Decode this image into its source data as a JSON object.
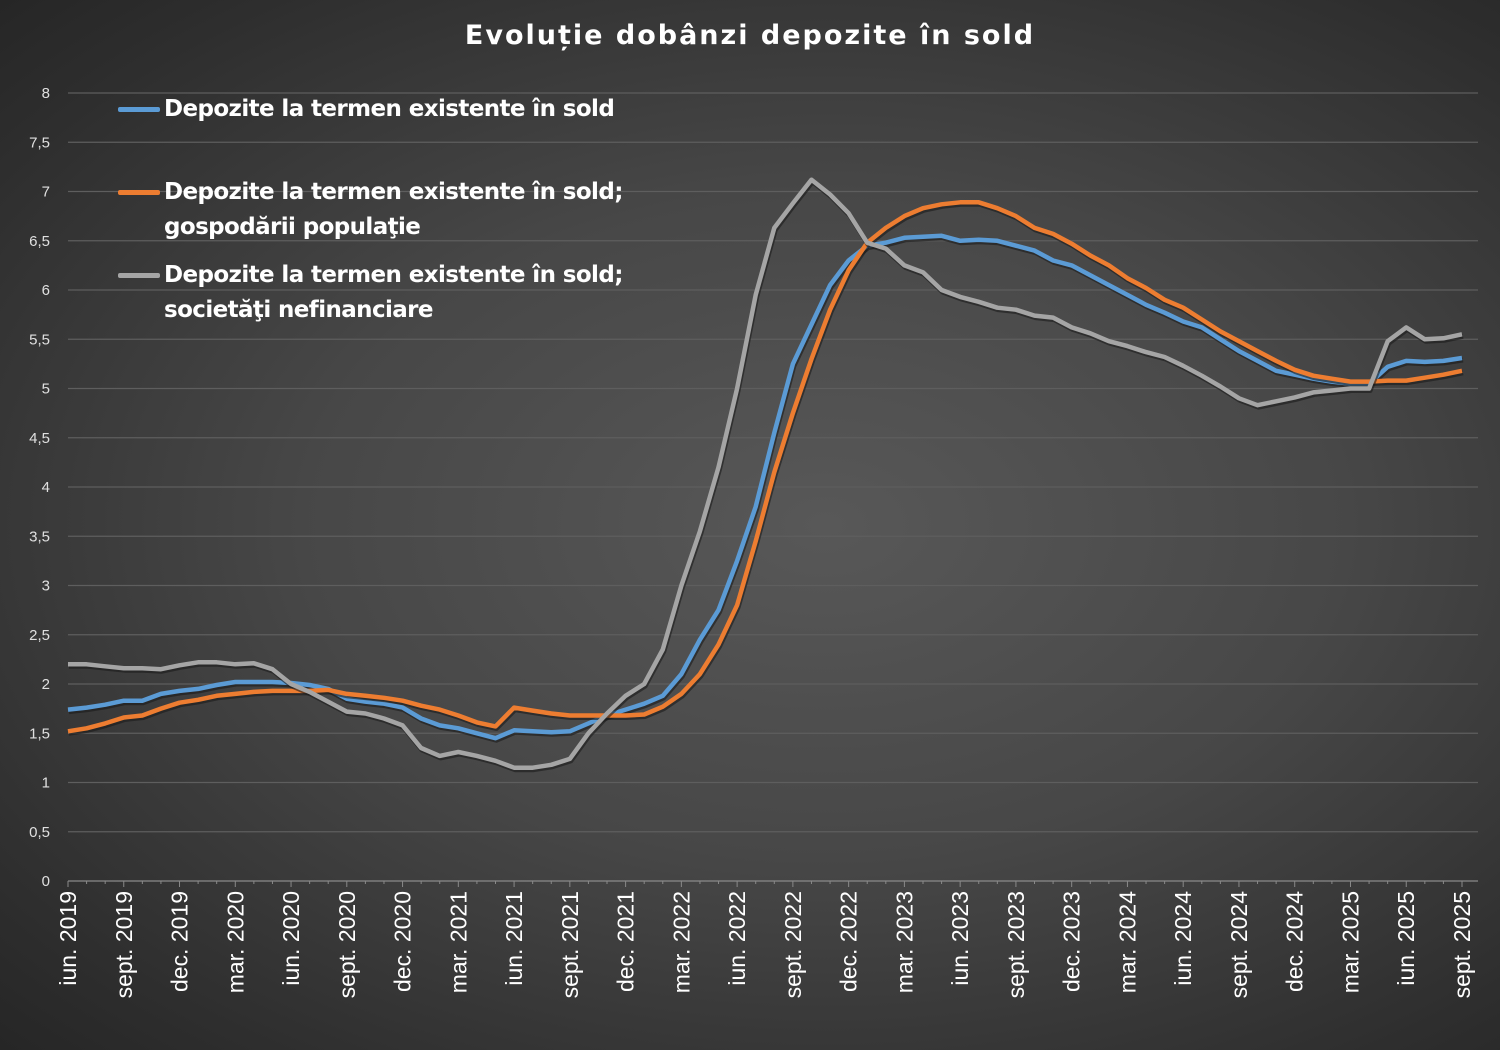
{
  "chart_data": {
    "type": "line",
    "title": "Evoluție dobânzi depozite în sold",
    "xlabel": "",
    "ylabel": "",
    "ylim": [
      0,
      8
    ],
    "yticks": [
      "0",
      "0,5",
      "1",
      "1,5",
      "2",
      "2,5",
      "3",
      "3,5",
      "4",
      "4,5",
      "5",
      "5,5",
      "6",
      "6,5",
      "7",
      "7,5",
      "8"
    ],
    "x_start": "iun. 2019",
    "x_end": "sept. 2025",
    "x_tick_labels": [
      "iun. 2019",
      "sept. 2019",
      "dec. 2019",
      "mar. 2020",
      "iun. 2020",
      "sept. 2020",
      "dec. 2020",
      "mar. 2021",
      "iun. 2021",
      "sept. 2021",
      "dec. 2021",
      "mar. 2022",
      "iun. 2022",
      "sept. 2022",
      "dec. 2022",
      "mar. 2023",
      "iun. 2023",
      "sept. 2023",
      "dec. 2023",
      "mar. 2024",
      "iun. 2024",
      "sept. 2024",
      "dec. 2024",
      "mar. 2025",
      "iun. 2025",
      "sept. 2025"
    ],
    "grid": true,
    "legend_position": "top-left",
    "series": [
      {
        "name": "Depozite la termen existente în sold",
        "name_line2": "",
        "color": "#5b9bd5",
        "values": [
          1.74,
          1.76,
          1.79,
          1.83,
          1.83,
          1.9,
          1.93,
          1.95,
          1.99,
          2.02,
          2.02,
          2.02,
          2.01,
          1.99,
          1.95,
          1.85,
          1.82,
          1.8,
          1.76,
          1.65,
          1.58,
          1.55,
          1.5,
          1.45,
          1.53,
          1.52,
          1.51,
          1.52,
          1.6,
          1.68,
          1.74,
          1.8,
          1.88,
          2.1,
          2.45,
          2.75,
          3.25,
          3.8,
          4.55,
          5.25,
          5.65,
          6.05,
          6.3,
          6.45,
          6.48,
          6.53,
          6.54,
          6.55,
          6.5,
          6.51,
          6.5,
          6.45,
          6.4,
          6.3,
          6.25,
          6.15,
          6.05,
          5.95,
          5.85,
          5.77,
          5.68,
          5.62,
          5.5,
          5.38,
          5.28,
          5.18,
          5.14,
          5.1,
          5.07,
          5.05,
          5.05,
          5.22,
          5.28,
          5.27,
          5.28,
          5.31
        ]
      },
      {
        "name": "Depozite la termen existente în sold;",
        "name_line2": "gospodării populaţie",
        "color": "#ed7d31",
        "values": [
          1.52,
          1.55,
          1.6,
          1.66,
          1.68,
          1.75,
          1.81,
          1.84,
          1.88,
          1.9,
          1.92,
          1.93,
          1.93,
          1.93,
          1.94,
          1.9,
          1.88,
          1.86,
          1.83,
          1.78,
          1.74,
          1.68,
          1.61,
          1.57,
          1.76,
          1.73,
          1.7,
          1.68,
          1.68,
          1.68,
          1.68,
          1.69,
          1.77,
          1.9,
          2.1,
          2.4,
          2.8,
          3.45,
          4.15,
          4.75,
          5.3,
          5.8,
          6.2,
          6.48,
          6.63,
          6.75,
          6.83,
          6.87,
          6.89,
          6.89,
          6.83,
          6.75,
          6.63,
          6.57,
          6.47,
          6.35,
          6.25,
          6.12,
          6.02,
          5.9,
          5.82,
          5.7,
          5.58,
          5.48,
          5.38,
          5.28,
          5.19,
          5.13,
          5.1,
          5.07,
          5.07,
          5.08,
          5.08,
          5.11,
          5.14,
          5.18
        ]
      },
      {
        "name": "Depozite la termen existente în sold;",
        "name_line2": "societăţi nefinanciare",
        "color": "#a5a5a5",
        "values": [
          2.2,
          2.2,
          2.18,
          2.16,
          2.16,
          2.15,
          2.19,
          2.22,
          2.22,
          2.2,
          2.21,
          2.15,
          2.0,
          1.92,
          1.82,
          1.72,
          1.7,
          1.65,
          1.58,
          1.35,
          1.27,
          1.31,
          1.27,
          1.22,
          1.15,
          1.15,
          1.18,
          1.24,
          1.5,
          1.7,
          1.88,
          2.0,
          2.35,
          3.0,
          3.55,
          4.2,
          5.0,
          5.95,
          6.63,
          6.88,
          7.12,
          6.97,
          6.78,
          6.48,
          6.42,
          6.25,
          6.18,
          6.0,
          5.93,
          5.88,
          5.82,
          5.8,
          5.74,
          5.72,
          5.62,
          5.56,
          5.48,
          5.43,
          5.37,
          5.32,
          5.23,
          5.13,
          5.02,
          4.9,
          4.83,
          4.87,
          4.91,
          4.96,
          4.98,
          5.0,
          5.0,
          5.48,
          5.62,
          5.5,
          5.51,
          5.55
        ]
      }
    ]
  }
}
